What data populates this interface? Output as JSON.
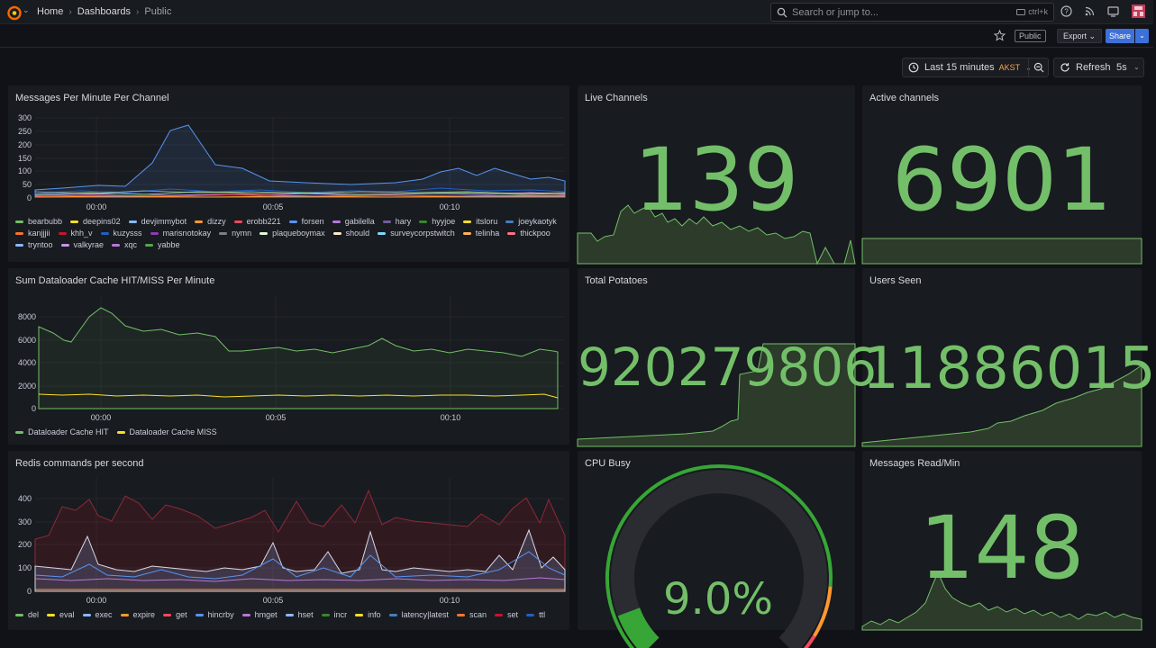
{
  "topbar": {
    "breadcrumbs": [
      "Home",
      "Dashboards",
      "Public"
    ],
    "search_placeholder": "Search or jump to...",
    "search_shortcut": "ctrl+k"
  },
  "toolbar": {
    "public_badge": "Public",
    "export_label": "Export",
    "share_label": "Share"
  },
  "time": {
    "range_label": "Last 15 minutes",
    "timezone": "AKST",
    "refresh_label": "Refresh",
    "refresh_interval": "5s"
  },
  "panels": {
    "messages": {
      "title": "Messages Per Minute Per Channel",
      "y_ticks": [
        "300",
        "250",
        "200",
        "150",
        "100",
        "50",
        "0"
      ],
      "x_ticks": [
        "00:00",
        "00:05",
        "00:10"
      ],
      "legend": [
        {
          "name": "bearbubb",
          "color": "#73bf69"
        },
        {
          "name": "deepins02",
          "color": "#fade2a"
        },
        {
          "name": "devjimmybot",
          "color": "#8ab8ff"
        },
        {
          "name": "dizzy",
          "color": "#ff9830"
        },
        {
          "name": "erobb221",
          "color": "#f2495c"
        },
        {
          "name": "forsen",
          "color": "#5794f2"
        },
        {
          "name": "gabilella",
          "color": "#b877d9"
        },
        {
          "name": "hary",
          "color": "#705da0"
        },
        {
          "name": "hyyjoe",
          "color": "#37872d"
        },
        {
          "name": "itsloru",
          "color": "#fade2a"
        },
        {
          "name": "joeykaotyk",
          "color": "#447ebc"
        },
        {
          "name": "kanjjjii",
          "color": "#f4762c"
        },
        {
          "name": "khh_v",
          "color": "#c4162a"
        },
        {
          "name": "kuzysss",
          "color": "#1f60c4"
        },
        {
          "name": "marisnotokay",
          "color": "#8f3bb8"
        },
        {
          "name": "nymn",
          "color": "#7e7e88"
        },
        {
          "name": "plaqueboymax",
          "color": "#e0f9d7"
        },
        {
          "name": "should",
          "color": "#fceaca"
        },
        {
          "name": "surveycorpstwitch",
          "color": "#80d8ff"
        },
        {
          "name": "telinha",
          "color": "#ffb357"
        },
        {
          "name": "thickpoo",
          "color": "#ff7383"
        },
        {
          "name": "tryntoo",
          "color": "#8ab8ff"
        },
        {
          "name": "valkyrae",
          "color": "#ca95e5"
        },
        {
          "name": "xqc",
          "color": "#b877d9"
        },
        {
          "name": "yabbe",
          "color": "#56a64b"
        }
      ]
    },
    "live_channels": {
      "title": "Live Channels",
      "value": "139"
    },
    "active_channels": {
      "title": "Active channels",
      "value": "6901"
    },
    "dataloader": {
      "title": "Sum Dataloader Cache HIT/MISS Per Minute",
      "y_ticks": [
        "8000",
        "6000",
        "4000",
        "2000",
        "0"
      ],
      "x_ticks": [
        "00:00",
        "00:05",
        "00:10"
      ],
      "legend": [
        {
          "name": "Dataloader Cache HIT",
          "color": "#73bf69"
        },
        {
          "name": "Dataloader Cache MISS",
          "color": "#fade2a"
        }
      ]
    },
    "total_potatoes": {
      "title": "Total Potatoes",
      "value": "920279806"
    },
    "users_seen": {
      "title": "Users Seen",
      "value": "11886015"
    },
    "redis": {
      "title": "Redis commands per second",
      "y_ticks": [
        "400",
        "300",
        "200",
        "100",
        "0"
      ],
      "x_ticks": [
        "00:00",
        "00:05",
        "00:10"
      ],
      "legend": [
        {
          "name": "del",
          "color": "#73bf69"
        },
        {
          "name": "eval",
          "color": "#fade2a"
        },
        {
          "name": "exec",
          "color": "#8ab8ff"
        },
        {
          "name": "expire",
          "color": "#ff9830"
        },
        {
          "name": "get",
          "color": "#f2495c"
        },
        {
          "name": "hincrby",
          "color": "#5794f2"
        },
        {
          "name": "hmget",
          "color": "#b877d9"
        },
        {
          "name": "hset",
          "color": "#8ab8ff"
        },
        {
          "name": "incr",
          "color": "#37872d"
        },
        {
          "name": "info",
          "color": "#fade2a"
        },
        {
          "name": "latency|latest",
          "color": "#447ebc"
        },
        {
          "name": "scan",
          "color": "#f4762c"
        },
        {
          "name": "set",
          "color": "#c4162a"
        },
        {
          "name": "ttl",
          "color": "#1f60c4"
        }
      ]
    },
    "cpu_busy": {
      "title": "CPU Busy",
      "value": "9.0%",
      "percent": 9.0
    },
    "messages_read": {
      "title": "Messages Read/Min",
      "value": "148"
    }
  },
  "colors": {
    "accent_green": "#73bf69",
    "spark_fill": "#2c3b2a",
    "share_blue": "#3d71d9",
    "timezone_orange": "#f5a153"
  }
}
